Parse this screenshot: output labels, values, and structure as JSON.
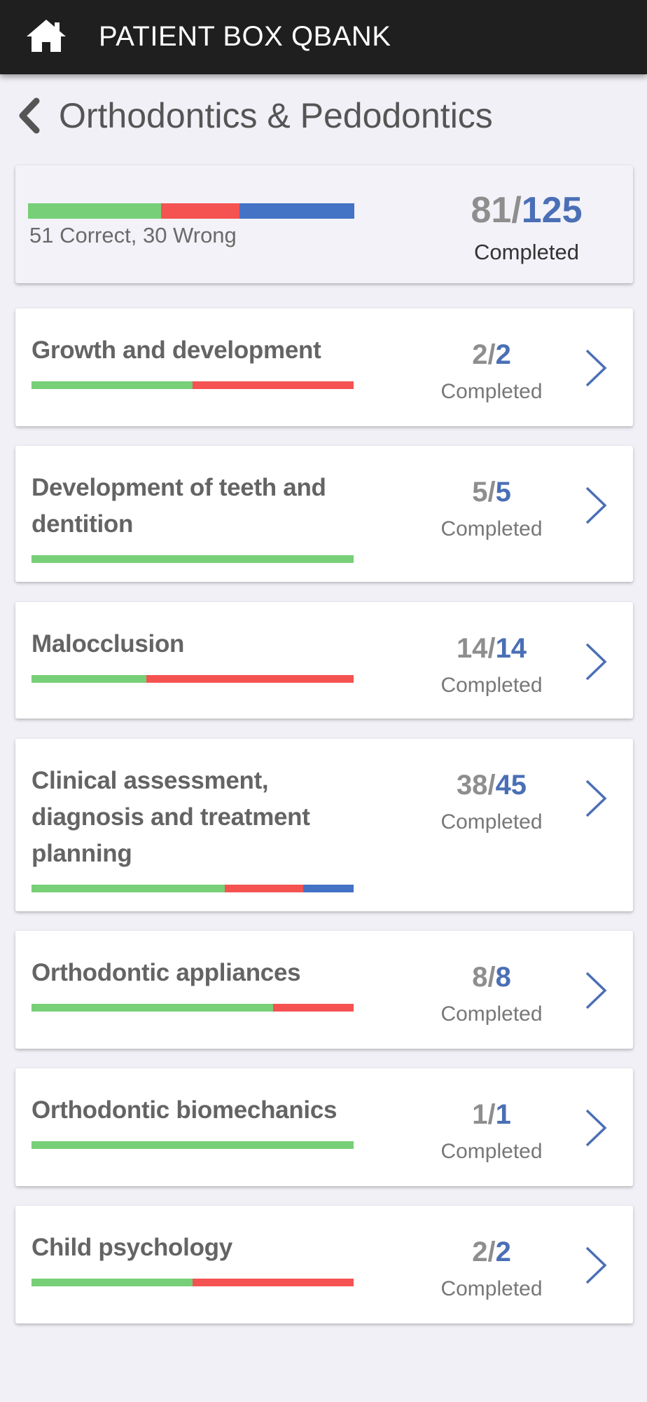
{
  "colors": {
    "correct": "#77cf77",
    "wrong": "#f55252",
    "remaining": "#4472c4",
    "accent": "#4a6fb5"
  },
  "appbar": {
    "title": "PATIENT BOX QBANK",
    "home_icon": "home-icon"
  },
  "header": {
    "title": "Orthodontics & Pedodontics",
    "back_icon": "chevron-left-icon"
  },
  "summary": {
    "correct": 51,
    "wrong": 30,
    "completed": 81,
    "total": 125,
    "result_text": "51 Correct, 30 Wrong",
    "completed_label": "Completed"
  },
  "topics": [
    {
      "name": "Growth and development",
      "completed": 2,
      "total": 2,
      "correct": 1,
      "wrong": 1,
      "completed_label": "Completed"
    },
    {
      "name": "Development of teeth and dentition",
      "completed": 5,
      "total": 5,
      "correct": 5,
      "wrong": 0,
      "completed_label": "Completed"
    },
    {
      "name": "Malocclusion",
      "completed": 14,
      "total": 14,
      "correct": 5,
      "wrong": 9,
      "completed_label": "Completed"
    },
    {
      "name": "Clinical assessment, diagnosis and treatment planning",
      "completed": 38,
      "total": 45,
      "correct": 27,
      "wrong": 11,
      "completed_label": "Completed"
    },
    {
      "name": "Orthodontic appliances",
      "completed": 8,
      "total": 8,
      "correct": 6,
      "wrong": 2,
      "completed_label": "Completed"
    },
    {
      "name": "Orthodontic biomechanics",
      "completed": 1,
      "total": 1,
      "correct": 1,
      "wrong": 0,
      "completed_label": "Completed"
    },
    {
      "name": "Child psychology",
      "completed": 2,
      "total": 2,
      "correct": 1,
      "wrong": 1,
      "completed_label": "Completed"
    }
  ]
}
